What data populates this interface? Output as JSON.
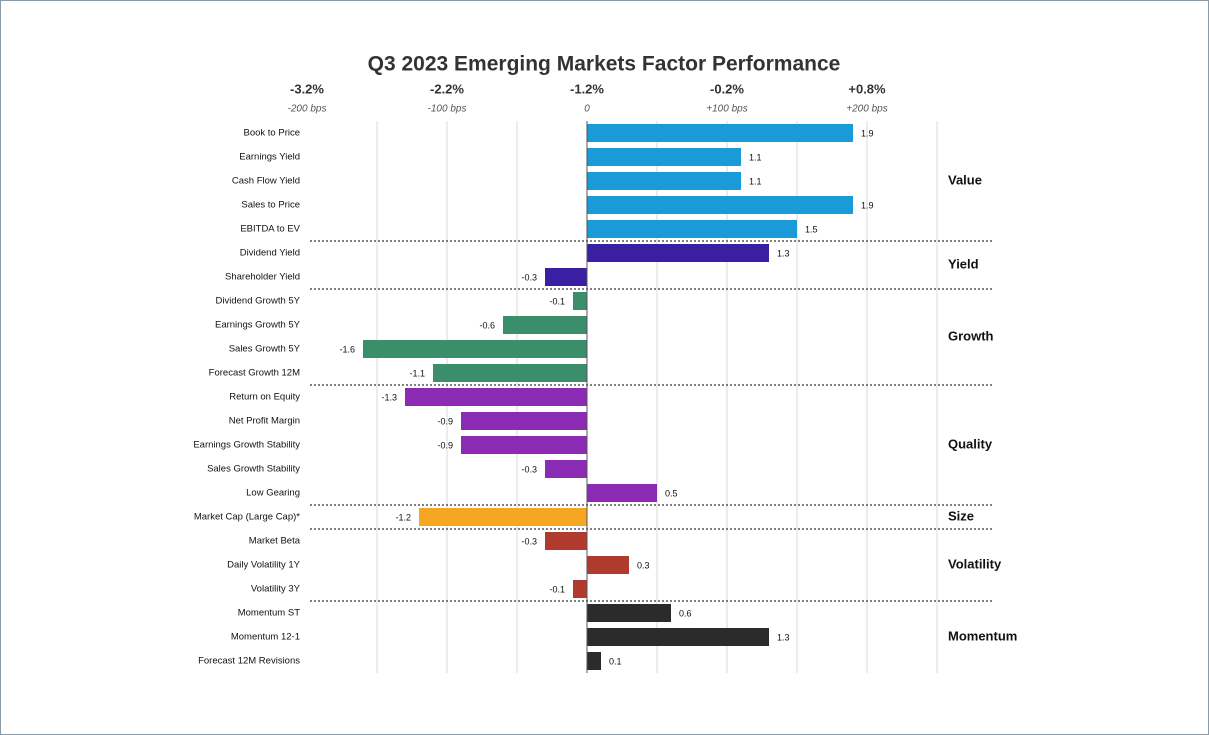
{
  "chart_data": {
    "type": "bar",
    "orientation": "horizontal",
    "title": "Q3 2023 Emerging Markets Factor Performance",
    "xlim": [
      -2,
      2.5
    ],
    "xticks": [
      {
        "value": -2,
        "label": "-3.2%"
      },
      {
        "value": -1,
        "label": "-2.2%"
      },
      {
        "value": 0,
        "label": "-1.2%"
      },
      {
        "value": 1,
        "label": "-0.2%"
      },
      {
        "value": 2,
        "label": "+0.8%"
      }
    ],
    "x2ticks": [
      {
        "value": -2,
        "label": "-200 bps"
      },
      {
        "value": -1,
        "label": "-100 bps"
      },
      0,
      {
        "value": 1,
        "label": "+100 bps"
      },
      {
        "value": 2,
        "label": "+200 bps"
      }
    ],
    "grid": true,
    "groups": [
      {
        "name": "Value",
        "color": "#1a9ad6",
        "categories": [
          "Book to Price",
          "Earnings Yield",
          "Cash Flow Yield",
          "Sales to Price",
          "EBITDA to EV"
        ],
        "values": [
          1.9,
          1.1,
          1.1,
          1.9,
          1.5
        ]
      },
      {
        "name": "Yield",
        "color": "#3a1fa3",
        "categories": [
          "Dividend Yield",
          "Shareholder Yield"
        ],
        "values": [
          1.3,
          -0.3
        ]
      },
      {
        "name": "Growth",
        "color": "#3a8f6a",
        "categories": [
          "Dividend Growth 5Y",
          "Earnings Growth 5Y",
          "Sales Growth 5Y",
          "Forecast Growth 12M"
        ],
        "values": [
          -0.1,
          -0.6,
          -1.6,
          -1.1
        ]
      },
      {
        "name": "Quality",
        "color": "#8b2bb3",
        "categories": [
          "Return on Equity",
          "Net Profit Margin",
          "Earnings Growth Stability",
          "Sales Growth Stability",
          "Low Gearing"
        ],
        "values": [
          -1.3,
          -0.9,
          -0.9,
          -0.3,
          0.5
        ]
      },
      {
        "name": "Size",
        "color": "#f5a623",
        "categories": [
          "Market Cap (Large Cap)*"
        ],
        "values": [
          -1.2
        ]
      },
      {
        "name": "Volatility",
        "color": "#b03a2e",
        "categories": [
          "Market Beta",
          "Daily Volatility 1Y",
          "Volatility 3Y"
        ],
        "values": [
          -0.3,
          0.3,
          -0.1
        ]
      },
      {
        "name": "Momentum",
        "color": "#2b2b2b",
        "categories": [
          "Momentum ST",
          "Momentum 12-1",
          "Forecast 12M Revisions"
        ],
        "values": [
          0.6,
          1.3,
          0.1
        ]
      }
    ]
  }
}
